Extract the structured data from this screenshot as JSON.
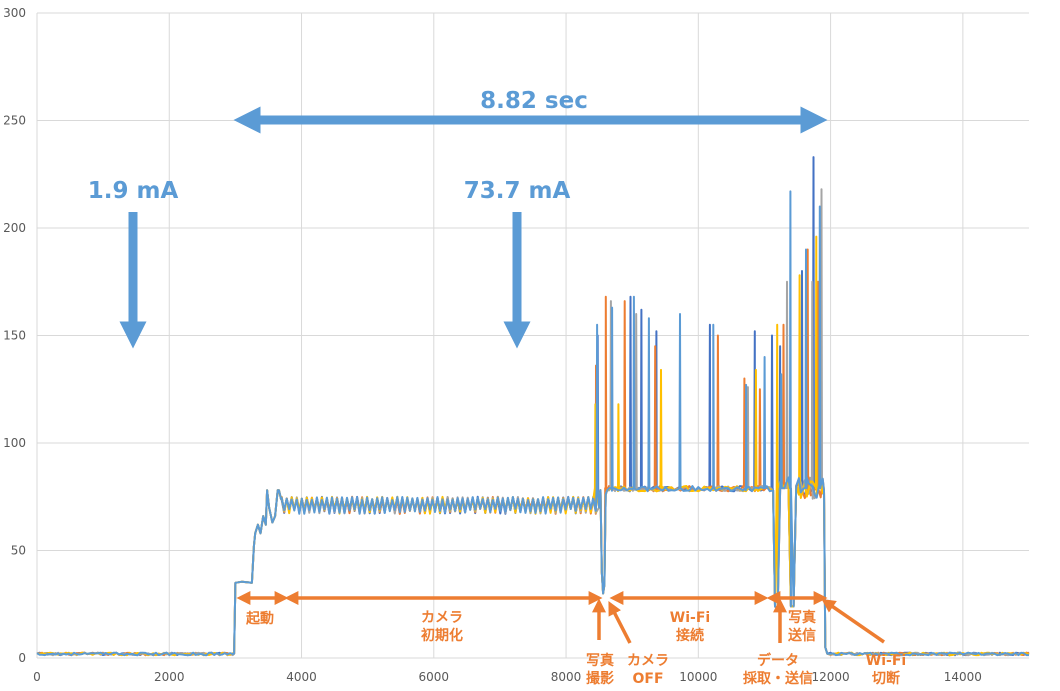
{
  "chart_data": {
    "type": "line",
    "title": "",
    "xlabel": "",
    "ylabel": "",
    "xlim": [
      0,
      15000
    ],
    "ylim": [
      0,
      300
    ],
    "x_ticks": [
      0,
      2000,
      4000,
      6000,
      8000,
      10000,
      12000,
      14000
    ],
    "y_ticks": [
      0,
      50,
      100,
      150,
      200,
      250,
      300
    ],
    "grid": true,
    "legend": "none",
    "series": [
      {
        "color": "#4472c4",
        "spikes": [
          [
            8990,
            150
          ],
          [
            9560,
            168
          ],
          [
            9750,
            162
          ],
          [
            10010,
            152
          ],
          [
            10940,
            155
          ],
          [
            11720,
            152
          ],
          [
            12020,
            150
          ],
          [
            12160,
            145
          ],
          [
            12540,
            180
          ],
          [
            12740,
            233
          ]
        ]
      },
      {
        "color": "#ed7d31",
        "spikes": [
          [
            8960,
            136
          ],
          [
            9130,
            168
          ],
          [
            9460,
            166
          ],
          [
            9990,
            145
          ],
          [
            11080,
            150
          ],
          [
            11540,
            130
          ],
          [
            11810,
            125
          ],
          [
            12220,
            155
          ],
          [
            12640,
            190
          ],
          [
            12820,
            175
          ]
        ]
      },
      {
        "color": "#a5a5a5",
        "spikes": [
          [
            9220,
            166
          ],
          [
            9660,
            160
          ],
          [
            11600,
            126
          ],
          [
            12280,
            175
          ],
          [
            12720,
            175
          ],
          [
            12880,
            218
          ]
        ]
      },
      {
        "color": "#ffc000",
        "spikes": [
          [
            8950,
            118
          ],
          [
            9350,
            118
          ],
          [
            10090,
            134
          ],
          [
            11740,
            134
          ],
          [
            12110,
            155
          ],
          [
            12500,
            178
          ],
          [
            12790,
            196
          ]
        ]
      },
      {
        "color": "#5b9bd5",
        "spikes": [
          [
            8980,
            155
          ],
          [
            9240,
            163
          ],
          [
            9620,
            168
          ],
          [
            9880,
            158
          ],
          [
            10420,
            160
          ],
          [
            11000,
            155
          ],
          [
            11570,
            127
          ],
          [
            11890,
            140
          ],
          [
            12180,
            132
          ],
          [
            12340,
            217
          ],
          [
            12610,
            190
          ],
          [
            12850,
            210
          ]
        ]
      }
    ],
    "annotations": {
      "duration": "8.82 sec",
      "baseline_current": "1.9 mA",
      "active_current": "73.7 mA"
    },
    "phases": [
      {
        "lines": [
          "起動"
        ]
      },
      {
        "lines": [
          "カメラ",
          "初期化"
        ]
      },
      {
        "lines": [
          "Wi-Fi",
          "接続"
        ]
      },
      {
        "lines": [
          "写真",
          "送信"
        ]
      },
      {
        "lines": [
          "写真",
          "撮影"
        ]
      },
      {
        "lines": [
          "カメラ",
          "OFF"
        ]
      },
      {
        "lines": [
          "データ",
          "採取・送信"
        ]
      },
      {
        "lines": [
          "Wi-Fi",
          "切断"
        ]
      }
    ],
    "colors": {
      "annotation_blue": "#5b9bd5",
      "phase_orange": "#ed7d31",
      "grid": "#d9d9d9"
    }
  }
}
